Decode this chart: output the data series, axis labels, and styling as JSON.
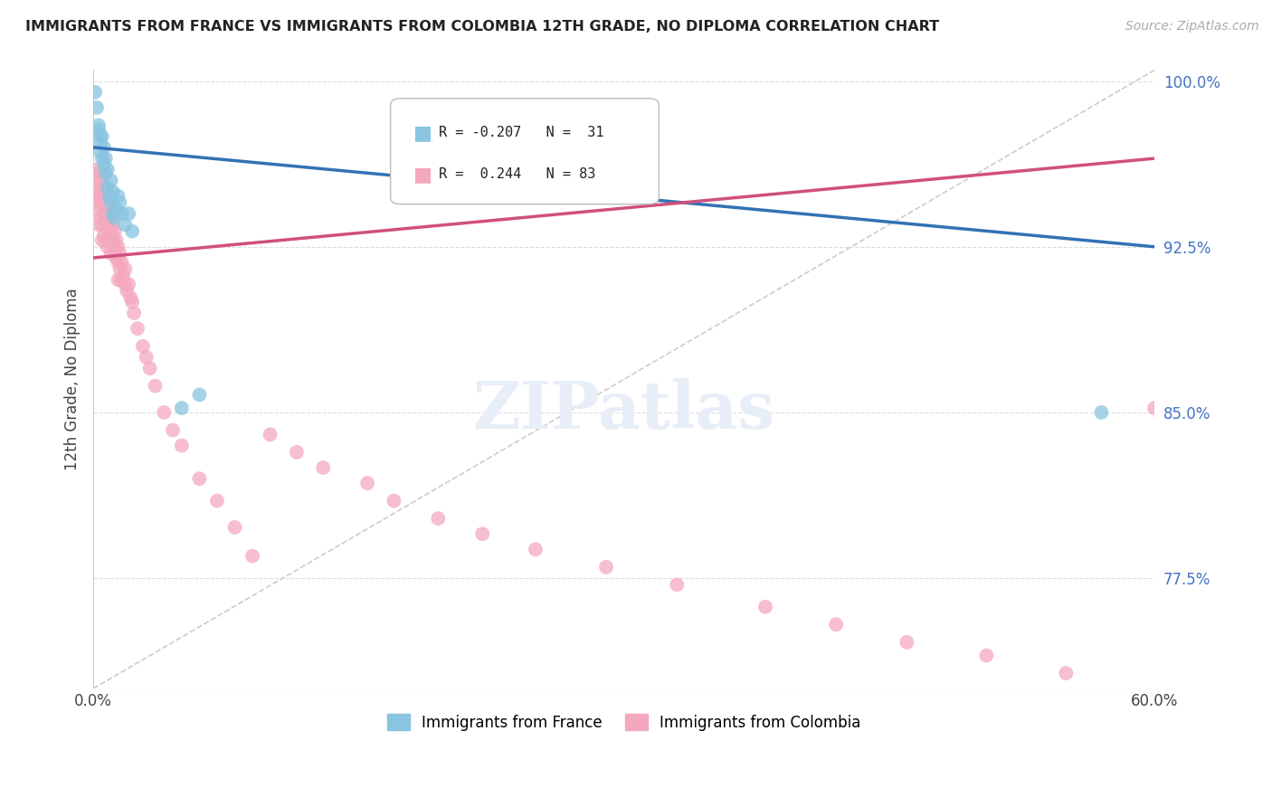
{
  "title": "IMMIGRANTS FROM FRANCE VS IMMIGRANTS FROM COLOMBIA 12TH GRADE, NO DIPLOMA CORRELATION CHART",
  "source": "Source: ZipAtlas.com",
  "ylabel": "12th Grade, No Diploma",
  "x_min": 0.0,
  "x_max": 0.6,
  "y_min": 0.725,
  "y_max": 1.005,
  "x_ticks": [
    0.0,
    0.1,
    0.2,
    0.3,
    0.4,
    0.5,
    0.6
  ],
  "x_tick_labels": [
    "0.0%",
    "",
    "",
    "",
    "",
    "",
    "60.0%"
  ],
  "y_tick_right": [
    0.775,
    0.85,
    0.925,
    1.0
  ],
  "y_tick_right_labels": [
    "77.5%",
    "85.0%",
    "92.5%",
    "100.0%"
  ],
  "legend_france_label": "Immigrants from France",
  "legend_colombia_label": "Immigrants from Colombia",
  "france_color": "#89C4E1",
  "colombia_color": "#F4A8BE",
  "france_line_color": "#3272B5",
  "colombia_line_color": "#D05080",
  "diagonal_color": "#cccccc",
  "background_color": "#ffffff",
  "grid_color": "#dddddd",
  "france_x": [
    0.001,
    0.002,
    0.003,
    0.003,
    0.004,
    0.004,
    0.004,
    0.005,
    0.005,
    0.006,
    0.006,
    0.007,
    0.007,
    0.008,
    0.008,
    0.009,
    0.01,
    0.01,
    0.011,
    0.011,
    0.012,
    0.013,
    0.014,
    0.015,
    0.016,
    0.018,
    0.02,
    0.022,
    0.05,
    0.06,
    0.57
  ],
  "france_y": [
    0.995,
    0.988,
    0.98,
    0.978,
    0.975,
    0.972,
    0.968,
    0.975,
    0.965,
    0.97,
    0.962,
    0.965,
    0.958,
    0.96,
    0.952,
    0.948,
    0.955,
    0.945,
    0.95,
    0.94,
    0.938,
    0.942,
    0.948,
    0.945,
    0.94,
    0.935,
    0.94,
    0.932,
    0.852,
    0.858,
    0.85
  ],
  "colombia_x": [
    0.001,
    0.001,
    0.002,
    0.002,
    0.002,
    0.003,
    0.003,
    0.003,
    0.004,
    0.004,
    0.004,
    0.005,
    0.005,
    0.005,
    0.005,
    0.006,
    0.006,
    0.006,
    0.007,
    0.007,
    0.007,
    0.008,
    0.008,
    0.008,
    0.009,
    0.009,
    0.01,
    0.01,
    0.01,
    0.011,
    0.011,
    0.012,
    0.012,
    0.013,
    0.013,
    0.014,
    0.014,
    0.014,
    0.015,
    0.015,
    0.016,
    0.016,
    0.017,
    0.018,
    0.018,
    0.019,
    0.02,
    0.021,
    0.022,
    0.023,
    0.025,
    0.028,
    0.03,
    0.032,
    0.035,
    0.04,
    0.045,
    0.05,
    0.06,
    0.07,
    0.08,
    0.09,
    0.1,
    0.115,
    0.13,
    0.155,
    0.17,
    0.195,
    0.22,
    0.25,
    0.29,
    0.33,
    0.38,
    0.42,
    0.46,
    0.505,
    0.55,
    0.6
  ],
  "colombia_y": [
    0.958,
    0.948,
    0.96,
    0.952,
    0.942,
    0.955,
    0.945,
    0.935,
    0.958,
    0.948,
    0.938,
    0.952,
    0.945,
    0.935,
    0.928,
    0.948,
    0.94,
    0.93,
    0.945,
    0.938,
    0.928,
    0.942,
    0.935,
    0.925,
    0.94,
    0.93,
    0.938,
    0.93,
    0.922,
    0.935,
    0.928,
    0.932,
    0.925,
    0.928,
    0.92,
    0.925,
    0.918,
    0.91,
    0.922,
    0.915,
    0.918,
    0.91,
    0.912,
    0.915,
    0.908,
    0.905,
    0.908,
    0.902,
    0.9,
    0.895,
    0.888,
    0.88,
    0.875,
    0.87,
    0.862,
    0.85,
    0.842,
    0.835,
    0.82,
    0.81,
    0.798,
    0.785,
    0.84,
    0.832,
    0.825,
    0.818,
    0.81,
    0.802,
    0.795,
    0.788,
    0.78,
    0.772,
    0.762,
    0.754,
    0.746,
    0.74,
    0.732,
    0.852
  ],
  "france_trend_x": [
    0.0,
    0.6
  ],
  "france_trend_y": [
    0.97,
    0.925
  ],
  "colombia_trend_x": [
    0.0,
    0.6
  ],
  "colombia_trend_y": [
    0.92,
    0.965
  ]
}
